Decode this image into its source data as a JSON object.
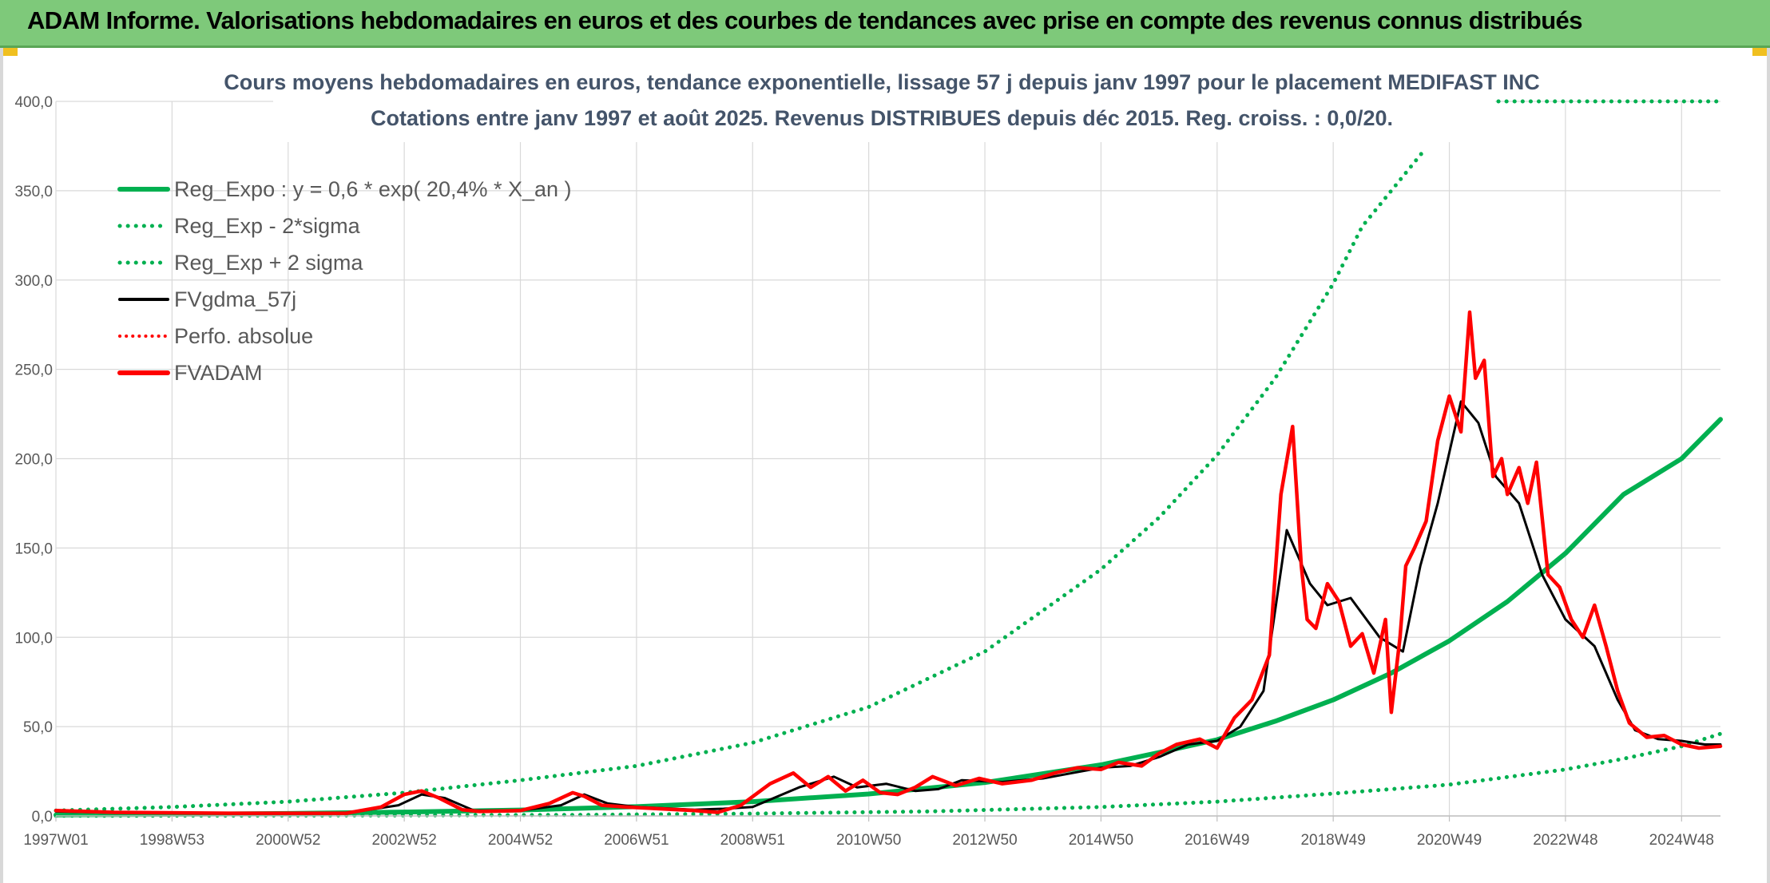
{
  "header": {
    "title": "ADAM Informe. Valorisations hebdomadaires en euros et des courbes de tendances avec prise en compte des revenus connus distribués"
  },
  "colors": {
    "header_bg": "#7ec97a",
    "trend_green": "#00b050",
    "price_red": "#ff0000",
    "smooth_black": "#000000",
    "title_text": "#44546a"
  },
  "chart_data": {
    "type": "line",
    "title": "Cours moyens hebdomadaires en euros, tendance exponentielle, lissage 57 j depuis janv 1997 pour le placement MEDIFAST INC",
    "subtitle": "Cotations entre janv 1997 et août 2025. Revenus DISTRIBUES depuis déc 2015. Reg. croiss. : 0,0/20.",
    "xlabel": "",
    "ylabel": "",
    "xlim": [
      1997.0,
      2025.67
    ],
    "ylim": [
      0,
      400
    ],
    "y_ticks": [
      "0,0",
      "50,0",
      "100,0",
      "150,0",
      "200,0",
      "250,0",
      "300,0",
      "350,0",
      "400,0"
    ],
    "y_tick_values": [
      0,
      50,
      100,
      150,
      200,
      250,
      300,
      350,
      400
    ],
    "x_ticks": [
      "1997W01",
      "1998W53",
      "2000W52",
      "2002W52",
      "2004W52",
      "2006W51",
      "2008W51",
      "2010W50",
      "2012W50",
      "2014W50",
      "2016W49",
      "2018W49",
      "2020W49",
      "2022W48",
      "2024W48"
    ],
    "x_tick_values": [
      1997.0,
      1999.0,
      2001.0,
      2003.0,
      2005.0,
      2007.0,
      2009.0,
      2011.0,
      2013.0,
      2015.0,
      2017.0,
      2019.0,
      2021.0,
      2023.0,
      2025.0
    ],
    "grid": true,
    "legend_position": "top-left",
    "series": [
      {
        "name": "Reg_Expo : y = 0,6 * exp( 20,4% *  X_an )",
        "color": "#00b050",
        "style": "solid",
        "x": [
          1997,
          1999,
          2001,
          2003,
          2005,
          2007,
          2009,
          2011,
          2013,
          2015,
          2016,
          2017,
          2018,
          2019,
          2020,
          2021,
          2022,
          2023,
          2024,
          2025,
          2025.67
        ],
        "y": [
          0.6,
          0.9,
          1.4,
          2.2,
          3.3,
          5.2,
          8.0,
          12.3,
          18.7,
          28.6,
          35.5,
          42.7,
          53.0,
          65.0,
          80.0,
          98.0,
          120.0,
          147.0,
          180.0,
          200.0,
          222.0
        ]
      },
      {
        "name": "Reg_Exp - 2*sigma",
        "color": "#00b050",
        "style": "dotted",
        "x": [
          1997,
          2000,
          2003,
          2006,
          2009,
          2012,
          2015,
          2017,
          2019,
          2021,
          2023,
          2024,
          2025,
          2025.67
        ],
        "y": [
          0.1,
          0.2,
          0.3,
          0.6,
          1.3,
          2.5,
          5.0,
          8.0,
          12.5,
          17.5,
          26.0,
          32.0,
          39.0,
          46.0
        ]
      },
      {
        "name": "Reg_Exp + 2 sigma",
        "color": "#00b050",
        "style": "dotted",
        "x": [
          1997,
          1999,
          2001,
          2003,
          2005,
          2007,
          2009,
          2011,
          2013,
          2015,
          2016,
          2017,
          2018,
          2019,
          2019.5,
          2020.6
        ],
        "y": [
          3.0,
          5.0,
          8.0,
          13.0,
          20.0,
          28.0,
          41.0,
          61.0,
          92.0,
          138.0,
          167.0,
          202.0,
          245.0,
          298.0,
          330.0,
          374.0
        ]
      },
      {
        "name": "FVgdma_57j",
        "color": "#000000",
        "style": "solid",
        "x": [
          1997.0,
          1998.0,
          2000.0,
          2002.0,
          2002.9,
          2003.3,
          2003.7,
          2004.2,
          2005.0,
          2005.7,
          2006.1,
          2006.5,
          2007.0,
          2008.0,
          2008.5,
          2009.0,
          2009.8,
          2010.4,
          2010.8,
          2011.3,
          2011.8,
          2012.2,
          2012.6,
          2013.3,
          2014.0,
          2014.5,
          2015.0,
          2015.5,
          2016.0,
          2016.5,
          2017.0,
          2017.4,
          2017.8,
          2018.2,
          2018.6,
          2018.9,
          2019.3,
          2019.8,
          2020.2,
          2020.5,
          2020.8,
          2021.2,
          2021.5,
          2021.8,
          2022.2,
          2022.6,
          2023.0,
          2023.5,
          2023.9,
          2024.2,
          2024.6,
          2025.0,
          2025.4,
          2025.67
        ],
        "y": [
          2.5,
          1.8,
          1.5,
          1.5,
          6.0,
          12.0,
          10.0,
          3.0,
          3.0,
          6.0,
          12.0,
          7.0,
          5.0,
          3.5,
          4.0,
          5.0,
          16.0,
          22.0,
          16.0,
          18.0,
          14.0,
          15.0,
          20.0,
          19.0,
          21.0,
          24.0,
          27.0,
          28.0,
          33.0,
          40.0,
          42.0,
          50.0,
          70.0,
          160.0,
          130.0,
          118.0,
          122.0,
          100.0,
          92.0,
          140.0,
          175.0,
          232.0,
          220.0,
          190.0,
          175.0,
          135.0,
          110.0,
          95.0,
          65.0,
          48.0,
          43.0,
          42.0,
          40.0,
          40.0
        ]
      },
      {
        "name": "Perfo. absolue",
        "color": "#ff0000",
        "style": "dotted",
        "x": [],
        "y": []
      },
      {
        "name": "FVADAM",
        "color": "#ff0000",
        "style": "solid",
        "x": [
          1997.0,
          1998.0,
          2000.0,
          2002.0,
          2002.6,
          2003.0,
          2003.3,
          2003.6,
          2004.0,
          2004.3,
          2005.0,
          2005.5,
          2005.9,
          2006.1,
          2006.4,
          2006.8,
          2007.4,
          2008.0,
          2008.4,
          2008.8,
          2009.3,
          2009.7,
          2010.0,
          2010.3,
          2010.6,
          2010.9,
          2011.2,
          2011.5,
          2011.8,
          2012.1,
          2012.5,
          2012.9,
          2013.3,
          2013.8,
          2014.2,
          2014.6,
          2015.0,
          2015.3,
          2015.7,
          2016.0,
          2016.3,
          2016.7,
          2017.0,
          2017.3,
          2017.6,
          2017.9,
          2018.1,
          2018.3,
          2018.45,
          2018.55,
          2018.7,
          2018.9,
          2019.1,
          2019.3,
          2019.5,
          2019.7,
          2019.9,
          2020.0,
          2020.15,
          2020.25,
          2020.4,
          2020.6,
          2020.8,
          2021.0,
          2021.2,
          2021.35,
          2021.45,
          2021.6,
          2021.75,
          2021.9,
          2022.0,
          2022.2,
          2022.35,
          2022.5,
          2022.7,
          2022.9,
          2023.1,
          2023.3,
          2023.5,
          2023.7,
          2023.9,
          2024.1,
          2024.4,
          2024.7,
          2025.0,
          2025.3,
          2025.67
        ],
        "y": [
          3.0,
          2.0,
          1.5,
          1.5,
          5.0,
          12.0,
          14.0,
          10.0,
          3.5,
          2.5,
          3.0,
          7.0,
          13.0,
          11.0,
          6.0,
          5.0,
          4.0,
          3.0,
          2.0,
          6.0,
          18.0,
          24.0,
          16.0,
          22.0,
          14.0,
          20.0,
          13.0,
          12.0,
          16.0,
          22.0,
          17.0,
          21.0,
          18.0,
          20.0,
          24.0,
          27.0,
          26.0,
          30.0,
          28.0,
          35.0,
          40.0,
          43.0,
          38.0,
          55.0,
          65.0,
          90.0,
          180.0,
          218.0,
          140.0,
          110.0,
          105.0,
          130.0,
          120.0,
          95.0,
          102.0,
          80.0,
          110.0,
          58.0,
          100.0,
          140.0,
          150.0,
          165.0,
          210.0,
          235.0,
          215.0,
          282.0,
          245.0,
          255.0,
          190.0,
          200.0,
          180.0,
          195.0,
          175.0,
          198.0,
          135.0,
          128.0,
          110.0,
          100.0,
          118.0,
          95.0,
          70.0,
          52.0,
          44.0,
          45.0,
          40.0,
          38.0,
          39.0
        ]
      }
    ]
  }
}
